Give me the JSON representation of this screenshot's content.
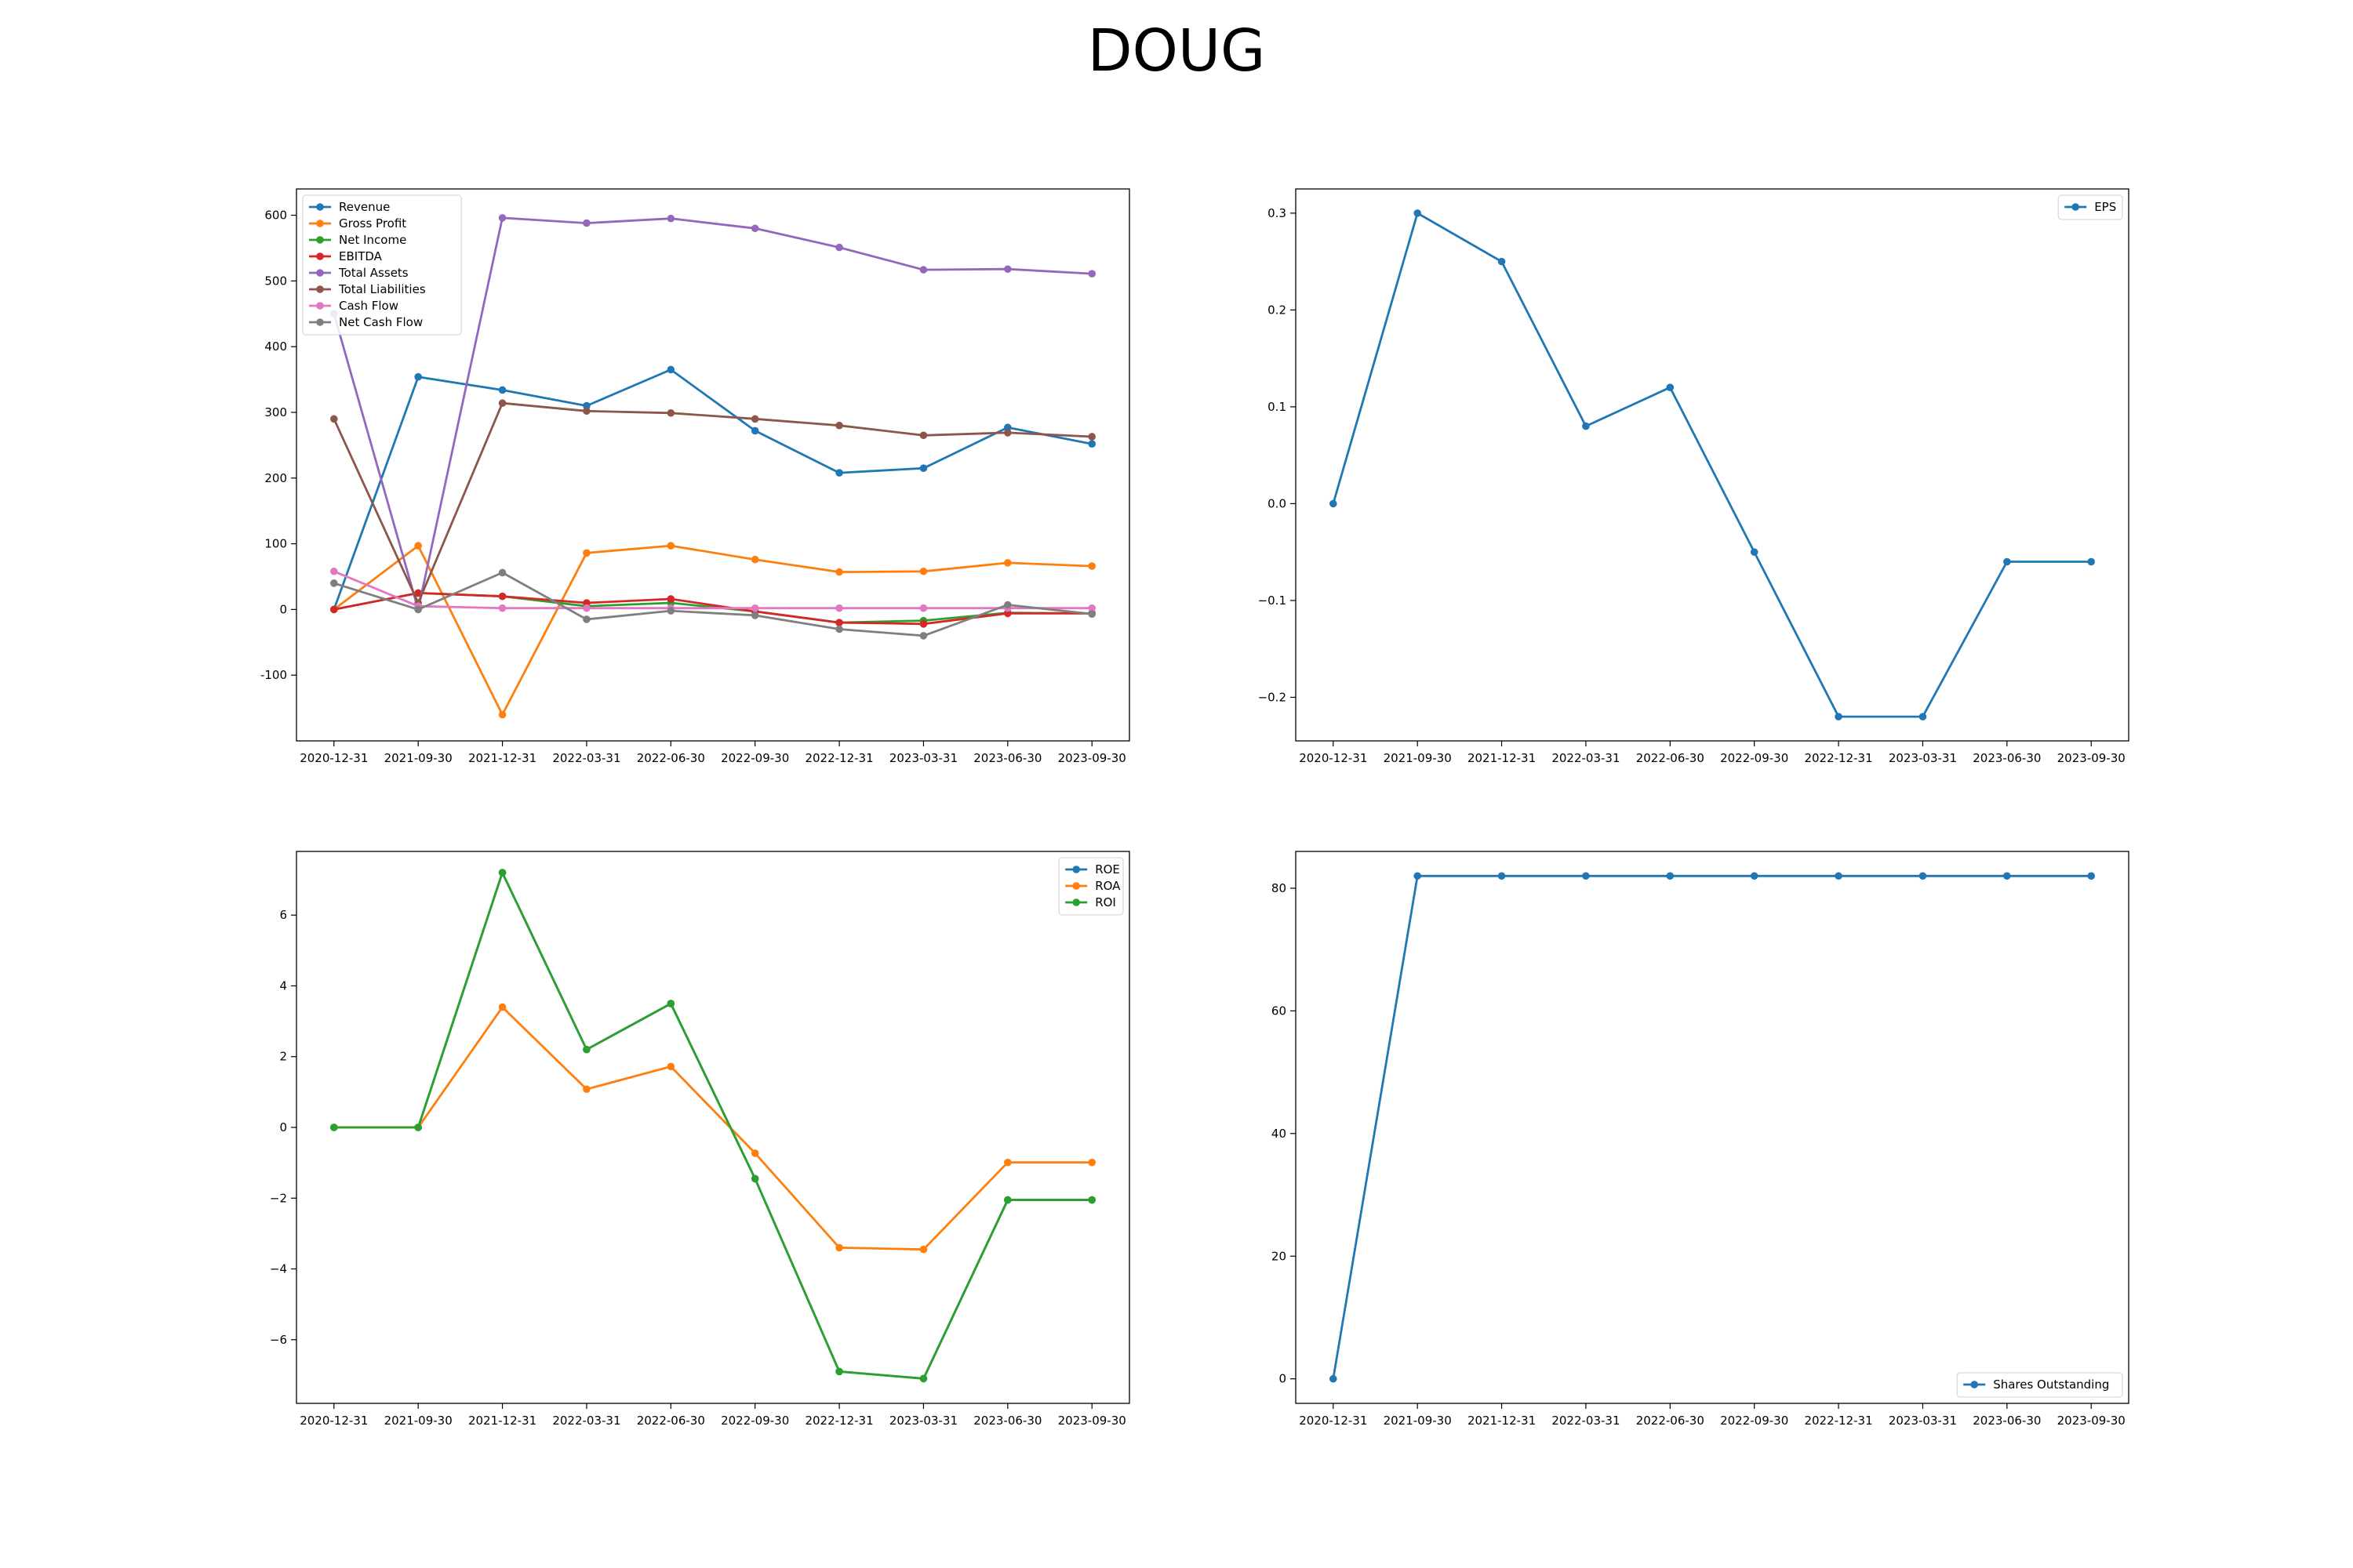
{
  "suptitle": "DOUG",
  "x_labels": [
    "2020-12-31",
    "2021-09-30",
    "2021-12-31",
    "2022-03-31",
    "2022-06-30",
    "2022-09-30",
    "2022-12-31",
    "2023-03-31",
    "2023-06-30",
    "2023-09-30"
  ],
  "colors": {
    "blue": "#1f77b4",
    "orange": "#ff7f0e",
    "green": "#2ca02c",
    "red": "#d62728",
    "purple": "#9467bd",
    "brown": "#8c564b",
    "pink": "#e377c2",
    "gray": "#7f7f7f"
  },
  "chart_data": [
    {
      "type": "line",
      "ylim": [
        -200,
        640
      ],
      "yticks": [
        -100,
        0,
        100,
        200,
        300,
        400,
        500,
        600
      ],
      "legend": "top-left",
      "series": [
        {
          "name": "Revenue",
          "color": "#1f77b4",
          "values": [
            0,
            354,
            334,
            310,
            365,
            272,
            208,
            215,
            277,
            252
          ]
        },
        {
          "name": "Gross Profit",
          "color": "#ff7f0e",
          "values": [
            0,
            97,
            -160,
            86,
            97,
            76,
            57,
            58,
            71,
            66
          ]
        },
        {
          "name": "Net Income",
          "color": "#2ca02c",
          "values": [
            0,
            25,
            20,
            5,
            10,
            -3,
            -20,
            -17,
            -5,
            -6
          ]
        },
        {
          "name": "EBITDA",
          "color": "#d62728",
          "values": [
            0,
            25,
            20,
            10,
            16,
            -3,
            -20,
            -22,
            -6,
            -6
          ]
        },
        {
          "name": "Total Assets",
          "color": "#9467bd",
          "values": [
            450,
            0,
            596,
            588,
            595,
            580,
            551,
            517,
            518,
            511
          ]
        },
        {
          "name": "Total Liabilities",
          "color": "#8c564b",
          "values": [
            290,
            10,
            314,
            302,
            299,
            290,
            280,
            265,
            269,
            263
          ]
        },
        {
          "name": "Cash Flow",
          "color": "#e377c2",
          "values": [
            58,
            5,
            2,
            2,
            2,
            2,
            2,
            2,
            2,
            2
          ]
        },
        {
          "name": "Net Cash Flow",
          "color": "#7f7f7f",
          "values": [
            40,
            0,
            56,
            -15,
            -2,
            -9,
            -30,
            -40,
            7,
            -7
          ]
        }
      ]
    },
    {
      "type": "line",
      "ylim": [
        -0.245,
        0.325
      ],
      "yticks": [
        -0.2,
        -0.1,
        0.0,
        0.1,
        0.2,
        0.3
      ],
      "ytick_labels": [
        "−0.2",
        "−0.1",
        "0.0",
        "0.1",
        "0.2",
        "0.3"
      ],
      "legend": "top-right",
      "series": [
        {
          "name": "EPS",
          "color": "#1f77b4",
          "values": [
            0.0,
            0.3,
            0.25,
            0.08,
            0.12,
            -0.05,
            -0.22,
            -0.22,
            -0.06,
            -0.06
          ]
        }
      ]
    },
    {
      "type": "line",
      "ylim": [
        -7.8,
        7.8
      ],
      "yticks": [
        -6,
        -4,
        -2,
        0,
        2,
        4,
        6
      ],
      "ytick_labels": [
        "−6",
        "−4",
        "−2",
        "0",
        "2",
        "4",
        "6"
      ],
      "legend": "top-right",
      "series": [
        {
          "name": "ROE",
          "color": "#1f77b4",
          "values": [
            0,
            0,
            7.2,
            2.2,
            3.5,
            -1.45,
            -6.9,
            -7.1,
            -2.05,
            -2.05
          ]
        },
        {
          "name": "ROA",
          "color": "#ff7f0e",
          "values": [
            0,
            0,
            3.4,
            1.08,
            1.72,
            -0.73,
            -3.4,
            -3.45,
            -0.99,
            -0.99
          ]
        },
        {
          "name": "ROI",
          "color": "#2ca02c",
          "values": [
            0,
            0,
            7.2,
            2.2,
            3.5,
            -1.45,
            -6.9,
            -7.1,
            -2.05,
            -2.05
          ]
        }
      ]
    },
    {
      "type": "line",
      "ylim": [
        -4,
        86
      ],
      "yticks": [
        0,
        20,
        40,
        60,
        80
      ],
      "legend": "bottom-right",
      "series": [
        {
          "name": "Shares Outstanding",
          "color": "#1f77b4",
          "values": [
            0,
            82,
            82,
            82,
            82,
            82,
            82,
            82,
            82,
            82
          ]
        }
      ]
    }
  ]
}
